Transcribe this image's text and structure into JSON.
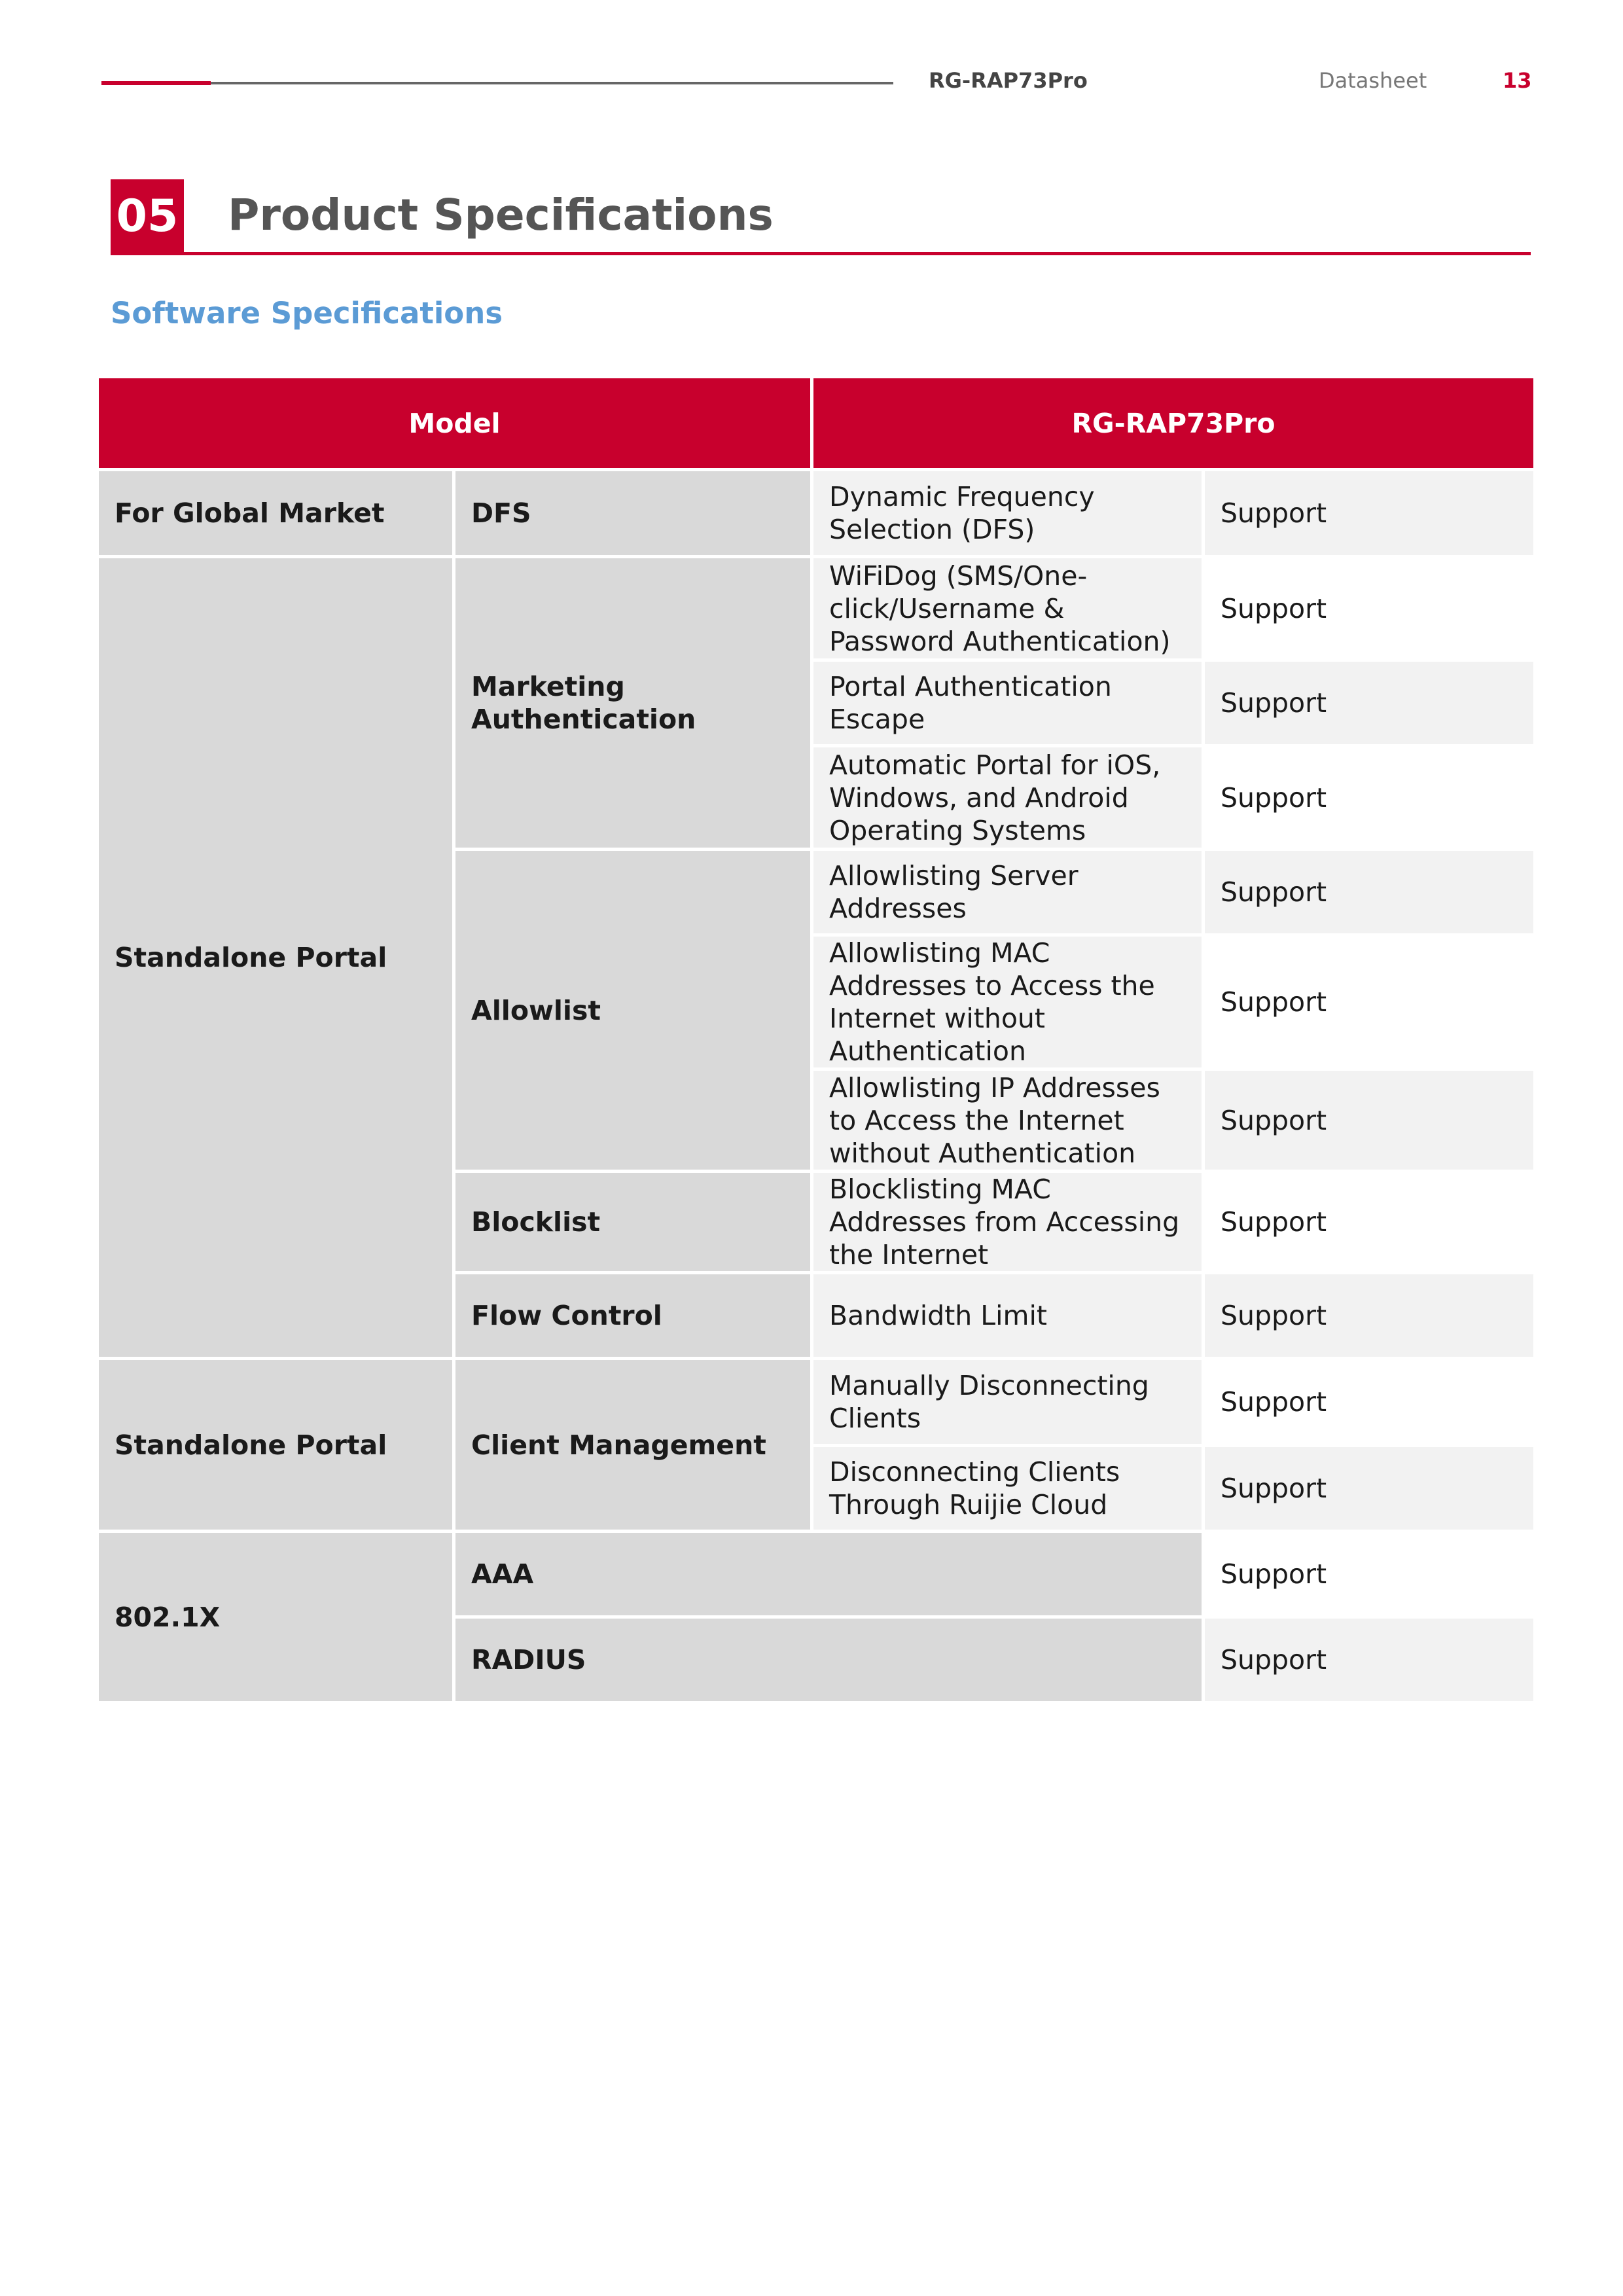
{
  "header": {
    "model": "RG-RAP73Pro",
    "doc_type": "Datasheet",
    "page_number": "13"
  },
  "section": {
    "number": "05",
    "title": "Product Specifications",
    "subtitle": "Software Specifications"
  },
  "colors": {
    "accent": "#c8002d",
    "subtitle": "#5b9bd5"
  },
  "table": {
    "headers": [
      "Model",
      "RG-RAP73Pro"
    ],
    "groups": {
      "global": "For Global Market",
      "portal1": "Standalone Portal",
      "portal2": "Standalone Portal",
      "dot1x": "802.1X"
    },
    "categories": {
      "dfs": "DFS",
      "marketing": "Marketing Authentication",
      "allowlist": "Allowlist",
      "blocklist": "Blocklist",
      "flow": "Flow Control",
      "client": "Client Management",
      "aaa": "AAA",
      "radius": "RADIUS"
    },
    "rows": [
      {
        "feature": "Dynamic Frequency Selection (DFS)",
        "value": "Support"
      },
      {
        "feature": "WiFiDog (SMS/One-click/Username & Password Authentication)",
        "value": "Support"
      },
      {
        "feature": "Portal Authentication Escape",
        "value": "Support"
      },
      {
        "feature": "Automatic Portal for iOS, Windows, and Android Operating Systems",
        "value": "Support"
      },
      {
        "feature": "Allowlisting Server Addresses",
        "value": "Support"
      },
      {
        "feature": "Allowlisting MAC Addresses to Access the Internet without Authentication",
        "value": "Support"
      },
      {
        "feature": "Allowlisting IP Addresses to Access the Internet without Authentication",
        "value": "Support"
      },
      {
        "feature": "Blocklisting MAC Addresses from Accessing the Internet",
        "value": "Support"
      },
      {
        "feature": "Bandwidth Limit",
        "value": "Support"
      },
      {
        "feature": "Manually Disconnecting Clients",
        "value": "Support"
      },
      {
        "feature": "Disconnecting Clients Through Ruijie Cloud",
        "value": "Support"
      },
      {
        "feature": "",
        "value": "Support"
      },
      {
        "feature": "",
        "value": "Support"
      }
    ]
  }
}
